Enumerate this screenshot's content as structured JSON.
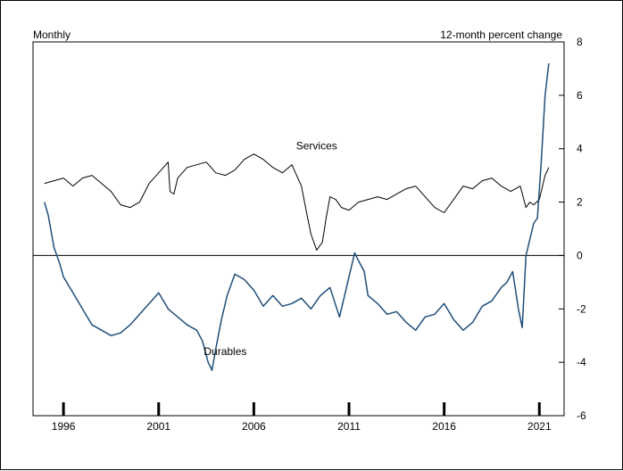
{
  "chart_data": {
    "type": "line",
    "left_axis_label": "Monthly",
    "right_axis_label": "12-month percent change",
    "ylim": [
      -6,
      8
    ],
    "y_ticks": [
      8,
      6,
      4,
      2,
      0,
      -2,
      -4,
      -6
    ],
    "xlim": [
      1994.4,
      2022.3
    ],
    "x_ticks": [
      {
        "label": "1996",
        "value": 1996
      },
      {
        "label": "2001",
        "value": 2001
      },
      {
        "label": "2006",
        "value": 2006
      },
      {
        "label": "2011",
        "value": 2011
      },
      {
        "label": "2016",
        "value": 2016
      },
      {
        "label": "2021",
        "value": 2021
      }
    ],
    "zero_line": true,
    "series": [
      {
        "name": "Services",
        "color": "#000000",
        "x": [
          1995.0,
          1995.5,
          1996.0,
          1996.5,
          1997.0,
          1997.5,
          1998.0,
          1998.5,
          1999.0,
          1999.5,
          2000.0,
          2000.5,
          2001.0,
          2001.5,
          2001.6,
          2001.8,
          2002.0,
          2002.5,
          2003.0,
          2003.5,
          2004.0,
          2004.5,
          2005.0,
          2005.5,
          2006.0,
          2006.5,
          2007.0,
          2007.5,
          2008.0,
          2008.5,
          2008.8,
          2009.0,
          2009.3,
          2009.6,
          2009.8,
          2010.0,
          2010.3,
          2010.6,
          2011.0,
          2011.5,
          2012.0,
          2012.5,
          2013.0,
          2013.5,
          2014.0,
          2014.5,
          2015.0,
          2015.5,
          2016.0,
          2016.5,
          2017.0,
          2017.5,
          2018.0,
          2018.5,
          2019.0,
          2019.5,
          2020.0,
          2020.3,
          2020.5,
          2020.7,
          2021.0,
          2021.3,
          2021.5
        ],
        "values": [
          2.7,
          2.8,
          2.9,
          2.6,
          2.9,
          3.0,
          2.7,
          2.4,
          1.9,
          1.8,
          2.0,
          2.7,
          3.1,
          3.5,
          2.4,
          2.3,
          2.9,
          3.3,
          3.4,
          3.5,
          3.1,
          3.0,
          3.2,
          3.6,
          3.8,
          3.6,
          3.3,
          3.1,
          3.4,
          2.6,
          1.5,
          0.8,
          0.2,
          0.5,
          1.4,
          2.2,
          2.1,
          1.8,
          1.7,
          2.0,
          2.1,
          2.2,
          2.1,
          2.3,
          2.5,
          2.6,
          2.2,
          1.8,
          1.6,
          2.1,
          2.6,
          2.5,
          2.8,
          2.9,
          2.6,
          2.4,
          2.6,
          1.8,
          2.0,
          1.9,
          2.1,
          3.0,
          3.3
        ]
      },
      {
        "name": "Durables",
        "color": "#1f4e79",
        "x": [
          1995.0,
          1995.2,
          1995.5,
          1995.8,
          1996.0,
          1996.5,
          1997.0,
          1997.5,
          1998.0,
          1998.5,
          1999.0,
          1999.5,
          2000.0,
          2000.5,
          2001.0,
          2001.5,
          2002.0,
          2002.5,
          2003.0,
          2003.3,
          2003.6,
          2003.8,
          2004.0,
          2004.3,
          2004.6,
          2005.0,
          2005.5,
          2006.0,
          2006.5,
          2007.0,
          2007.5,
          2008.0,
          2008.5,
          2009.0,
          2009.5,
          2010.0,
          2010.5,
          2011.0,
          2011.3,
          2011.5,
          2011.8,
          2012.0,
          2012.5,
          2013.0,
          2013.5,
          2014.0,
          2014.5,
          2015.0,
          2015.5,
          2016.0,
          2016.5,
          2017.0,
          2017.5,
          2018.0,
          2018.5,
          2019.0,
          2019.3,
          2019.6,
          2019.9,
          2020.1,
          2020.3,
          2020.5,
          2020.7,
          2020.9,
          2021.1,
          2021.3,
          2021.5
        ],
        "values": [
          2.0,
          1.5,
          0.3,
          -0.3,
          -0.8,
          -1.4,
          -2.0,
          -2.6,
          -2.8,
          -3.0,
          -2.9,
          -2.6,
          -2.2,
          -1.8,
          -1.4,
          -2.0,
          -2.3,
          -2.6,
          -2.8,
          -3.2,
          -4.0,
          -4.3,
          -3.5,
          -2.4,
          -1.5,
          -0.7,
          -0.9,
          -1.3,
          -1.9,
          -1.5,
          -1.9,
          -1.8,
          -1.6,
          -2.0,
          -1.5,
          -1.2,
          -2.3,
          -0.8,
          0.1,
          -0.2,
          -0.6,
          -1.5,
          -1.8,
          -2.2,
          -2.1,
          -2.5,
          -2.8,
          -2.3,
          -2.2,
          -1.8,
          -2.4,
          -2.8,
          -2.5,
          -1.9,
          -1.7,
          -1.2,
          -1.0,
          -0.6,
          -2.0,
          -2.7,
          0.0,
          0.6,
          1.2,
          1.4,
          3.5,
          6.0,
          7.2
        ]
      }
    ],
    "annotations": [
      {
        "text": "Services",
        "x": 2009.3,
        "y": 4.1
      },
      {
        "text": "Durables",
        "x": 2004.5,
        "y": -3.6
      }
    ]
  }
}
